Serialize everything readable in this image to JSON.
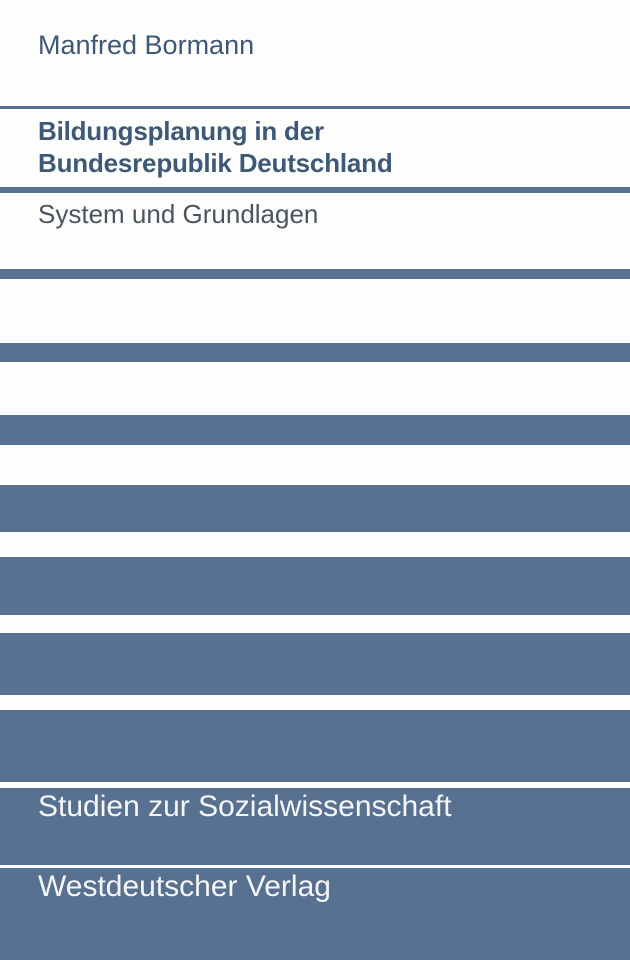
{
  "cover": {
    "author": "Manfred Bormann",
    "title_line1": "Bildungsplanung in der",
    "title_line2": "Bundesrepublik Deutschland",
    "subtitle": "System und Grundlagen",
    "series": "Studien zur Sozialwissenschaft",
    "publisher": "Westdeutscher Verlag"
  },
  "colors": {
    "stripe": "#587190",
    "title_text": "#3e5877",
    "background": "#fdfdfc"
  }
}
